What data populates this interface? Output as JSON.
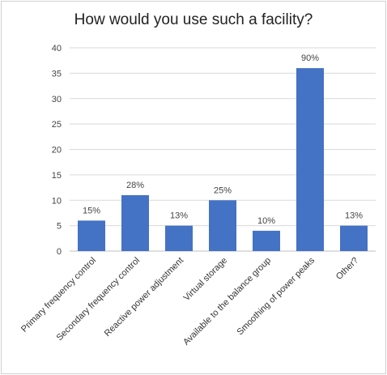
{
  "chart_data": {
    "type": "bar",
    "title": "How would you use such a facility?",
    "categories": [
      "Primary frequency control",
      "Secondary frequency control",
      "Reactive power adjustment",
      "Virtual storage",
      "Available to the balance group",
      "Smoothing of power peaks",
      "Other?"
    ],
    "values": [
      6,
      11,
      5,
      10,
      4,
      36,
      5
    ],
    "data_labels": [
      "15%",
      "28%",
      "13%",
      "25%",
      "10%",
      "90%",
      "13%"
    ],
    "yticks": [
      "0",
      "5",
      "10",
      "15",
      "20",
      "25",
      "30",
      "35",
      "40"
    ],
    "ylim": [
      0,
      40
    ],
    "grid": true,
    "legend": "none",
    "bar_color": "#4472c4",
    "grid_color": "#d9d9d9"
  }
}
